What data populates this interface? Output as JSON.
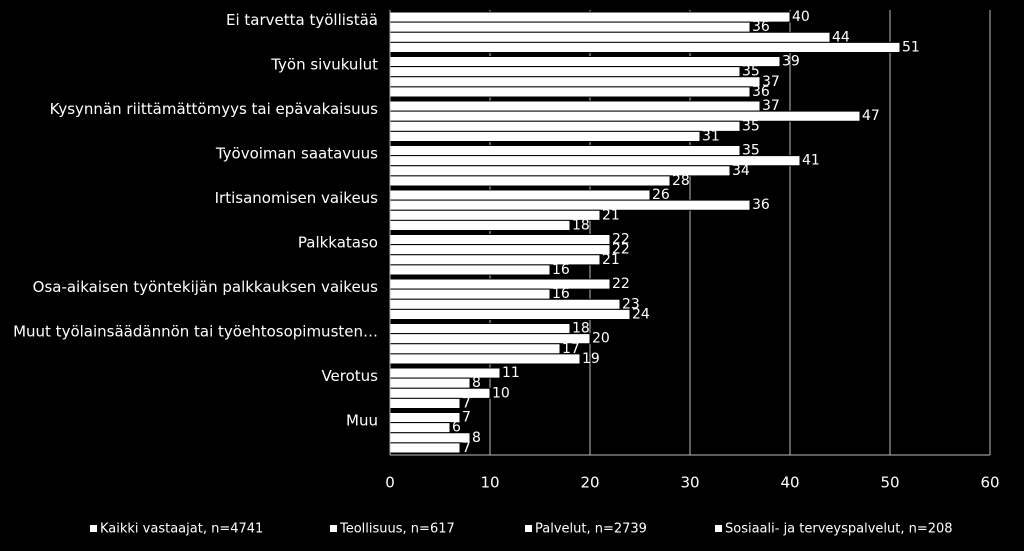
{
  "chart_data": {
    "type": "hbar",
    "categories": [
      "Ei tarvetta työllistää",
      "Työn sivukulut",
      "Kysynnän riittämättömyys tai epävakaisuus",
      "Työvoiman saatavuus",
      "Irtisanomisen vaikeus",
      "Palkkataso",
      "Osa-aikaisen työntekijän palkkauksen vaikeus",
      "Muut työlainsäädännön tai työehtosopimusten…",
      "Verotus",
      "Muu"
    ],
    "series": [
      {
        "name": "Kaikki vastaajat, n=4741",
        "color": "#ffffff",
        "values": [
          40,
          39,
          37,
          35,
          26,
          22,
          22,
          18,
          11,
          7
        ]
      },
      {
        "name": "Teollisuus, n=617",
        "color": "#ffffff",
        "values": [
          36,
          35,
          47,
          41,
          36,
          22,
          16,
          20,
          8,
          6
        ]
      },
      {
        "name": "Palvelut, n=2739",
        "color": "#ffffff",
        "values": [
          44,
          37,
          35,
          34,
          21,
          21,
          23,
          17,
          10,
          8
        ]
      },
      {
        "name": "Sosiaali- ja terveyspalvelut, n=208",
        "color": "#ffffff",
        "values": [
          51,
          36,
          31,
          28,
          18,
          16,
          24,
          19,
          7,
          7
        ]
      }
    ],
    "xlim": [
      0,
      60
    ],
    "xticks": [
      0,
      10,
      20,
      30,
      40,
      50,
      60
    ],
    "grid": true,
    "legend": "bottom"
  }
}
